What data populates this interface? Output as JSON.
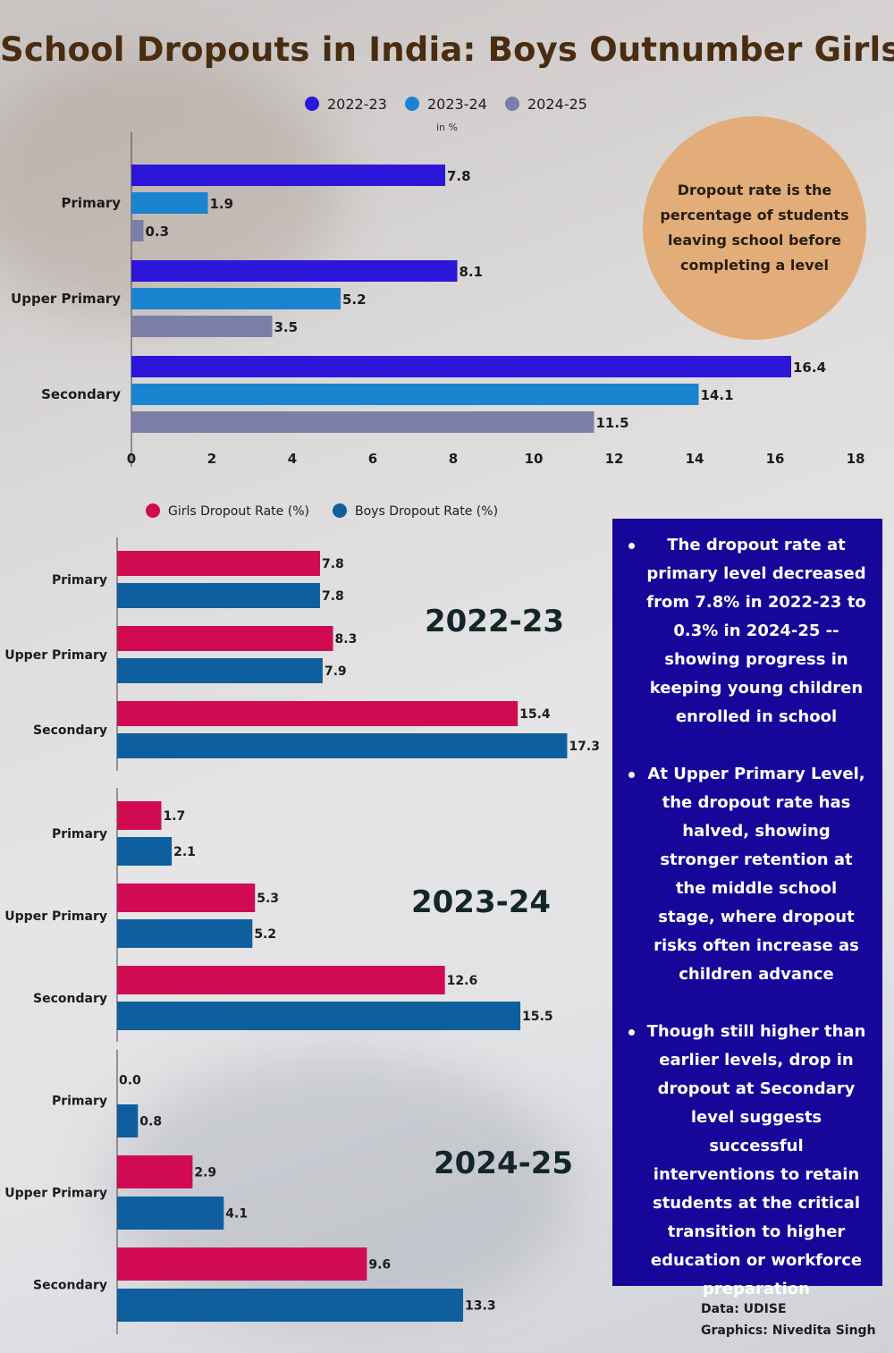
{
  "title": "School Dropouts in India: Boys Outnumber Girls",
  "chart_data": [
    {
      "type": "bar",
      "orientation": "horizontal",
      "categories": [
        "Primary",
        "Upper Primary",
        "Secondary"
      ],
      "unit_label": "in %",
      "series": [
        {
          "name": "2022-23",
          "color": "#2b16d9",
          "values": [
            7.8,
            8.1,
            16.4
          ]
        },
        {
          "name": "2023-24",
          "color": "#1b84d0",
          "values": [
            1.9,
            5.2,
            14.1
          ]
        },
        {
          "name": "2024-25",
          "color": "#7a7ea8",
          "values": [
            0.3,
            3.5,
            11.5
          ]
        }
      ],
      "xlim": [
        0,
        18
      ],
      "xticks": [
        0,
        2,
        4,
        6,
        8,
        10,
        12,
        14,
        16,
        18
      ],
      "legend": "top",
      "grid": false
    },
    {
      "type": "bar",
      "orientation": "horizontal",
      "panel_label": "2022-23",
      "categories": [
        "Primary",
        "Upper Primary",
        "Secondary"
      ],
      "series": [
        {
          "name": "Girls Dropout Rate (%)",
          "color": "#d10b52",
          "values": [
            7.8,
            8.3,
            15.4
          ]
        },
        {
          "name": "Boys Dropout Rate (%)",
          "color": "#0f5f9e",
          "values": [
            7.8,
            7.9,
            17.3
          ]
        }
      ],
      "legend": "top"
    },
    {
      "type": "bar",
      "orientation": "horizontal",
      "panel_label": "2023-24",
      "categories": [
        "Primary",
        "Upper Primary",
        "Secondary"
      ],
      "series": [
        {
          "name": "Girls Dropout Rate (%)",
          "color": "#d10b52",
          "values": [
            1.7,
            5.3,
            12.6
          ]
        },
        {
          "name": "Boys Dropout Rate (%)",
          "color": "#0f5f9e",
          "values": [
            2.1,
            5.2,
            15.5
          ]
        }
      ]
    },
    {
      "type": "bar",
      "orientation": "horizontal",
      "panel_label": "2024-25",
      "categories": [
        "Primary",
        "Upper Primary",
        "Secondary"
      ],
      "series": [
        {
          "name": "Girls Dropout Rate (%)",
          "color": "#d10b52",
          "values": [
            0.0,
            2.9,
            9.6
          ]
        },
        {
          "name": "Boys Dropout Rate (%)",
          "color": "#0f5f9e",
          "values": [
            0.8,
            4.1,
            13.3
          ]
        }
      ]
    }
  ],
  "circle_note": "Dropout rate is the percentage of students leaving school before completing a level",
  "insights": [
    "The dropout rate at primary level decreased from 7.8% in 2022-23 to 0.3% in 2024-25 -- showing progress in keeping young  children enrolled in school",
    "At Upper Primary Level, the dropout rate has halved, showing stronger retention at the middle school stage, where dropout risks often increase as children advance",
    "Though still higher than earlier levels, drop in dropout at Secondary level suggests successful  interventions to retain students at the critical transition to higher education or workforce preparation"
  ],
  "footer": {
    "data_source": "Data: UDISE",
    "credit": "Graphics: Nivedita Singh"
  }
}
